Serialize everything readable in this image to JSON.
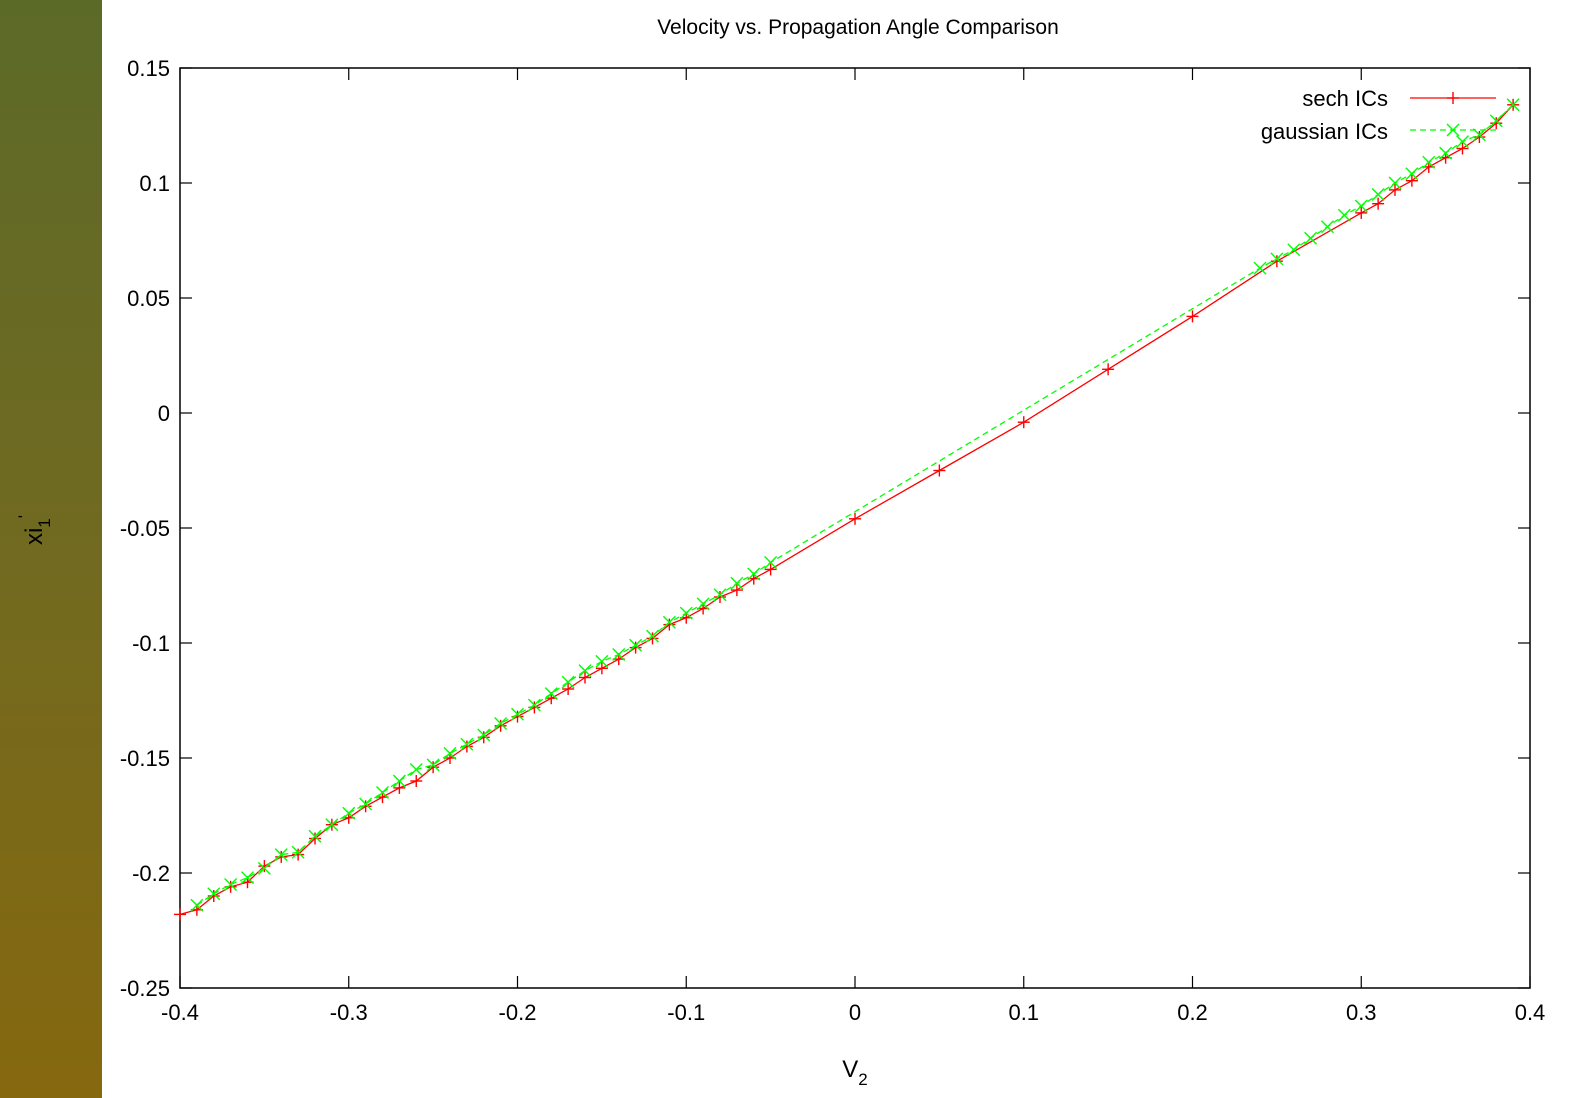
{
  "colors": {
    "sidebar_top": "#5c6a28",
    "sidebar_bottom": "#86680f",
    "plot_background": "#ffffff",
    "axis": "#000000"
  },
  "chart_data": {
    "type": "line",
    "title": "Velocity vs. Propagation Angle Comparison",
    "xlabel": "V",
    "xlabel_sub": "2",
    "ylabel": "xi",
    "ylabel_sub": "1",
    "ylabel_prime": "'",
    "xlim": [
      -0.4,
      0.4
    ],
    "ylim": [
      -0.25,
      0.15
    ],
    "x_ticks": [
      -0.4,
      -0.3,
      -0.2,
      -0.1,
      0,
      0.1,
      0.2,
      0.3,
      0.4
    ],
    "x_tick_labels": [
      "-0.4",
      "-0.3",
      "-0.2",
      "-0.1",
      "0",
      "0.1",
      "0.2",
      "0.3",
      "0.4"
    ],
    "y_ticks": [
      -0.25,
      -0.2,
      -0.15,
      -0.1,
      -0.05,
      0,
      0.05,
      0.1,
      0.15
    ],
    "y_tick_labels": [
      "-0.25",
      "-0.2",
      "-0.15",
      "-0.1",
      "-0.05",
      "0",
      "0.05",
      "0.1",
      "0.15"
    ],
    "grid": false,
    "legend_position": "top-right",
    "series": [
      {
        "name": "sech ICs",
        "color": "#ff0000",
        "line_style": "solid",
        "marker": "plus",
        "x": [
          -0.4,
          -0.39,
          -0.38,
          -0.37,
          -0.36,
          -0.35,
          -0.34,
          -0.33,
          -0.32,
          -0.31,
          -0.3,
          -0.29,
          -0.28,
          -0.27,
          -0.26,
          -0.25,
          -0.24,
          -0.23,
          -0.22,
          -0.21,
          -0.2,
          -0.19,
          -0.18,
          -0.17,
          -0.16,
          -0.15,
          -0.14,
          -0.13,
          -0.12,
          -0.11,
          -0.1,
          -0.09,
          -0.08,
          -0.07,
          -0.06,
          -0.05,
          0,
          0.05,
          0.1,
          0.15,
          0.2,
          0.25,
          0.3,
          0.31,
          0.32,
          0.33,
          0.34,
          0.35,
          0.36,
          0.37,
          0.38,
          0.39
        ],
        "y": [
          -0.218,
          -0.216,
          -0.21,
          -0.206,
          -0.204,
          -0.197,
          -0.193,
          -0.192,
          -0.185,
          -0.179,
          -0.176,
          -0.171,
          -0.167,
          -0.163,
          -0.16,
          -0.154,
          -0.15,
          -0.145,
          -0.141,
          -0.136,
          -0.132,
          -0.128,
          -0.124,
          -0.12,
          -0.115,
          -0.111,
          -0.107,
          -0.102,
          -0.098,
          -0.092,
          -0.089,
          -0.085,
          -0.08,
          -0.077,
          -0.072,
          -0.068,
          -0.046,
          -0.025,
          -0.004,
          0.019,
          0.042,
          0.066,
          0.087,
          0.091,
          0.097,
          0.101,
          0.107,
          0.111,
          0.115,
          0.12,
          0.126,
          0.134
        ]
      },
      {
        "name": "gaussian ICs",
        "color": "#00ff00",
        "line_style": "dashed",
        "marker": "cross",
        "x": [
          -0.39,
          -0.38,
          -0.37,
          -0.36,
          -0.35,
          -0.34,
          -0.33,
          -0.32,
          -0.31,
          -0.3,
          -0.29,
          -0.28,
          -0.27,
          -0.26,
          -0.25,
          -0.24,
          -0.23,
          -0.22,
          -0.21,
          -0.2,
          -0.19,
          -0.18,
          -0.17,
          -0.16,
          -0.15,
          -0.14,
          -0.13,
          -0.12,
          -0.11,
          -0.1,
          -0.09,
          -0.08,
          -0.07,
          -0.06,
          -0.05,
          0.24,
          0.25,
          0.26,
          0.27,
          0.28,
          0.29,
          0.3,
          0.31,
          0.32,
          0.33,
          0.34,
          0.35,
          0.36,
          0.37,
          0.38,
          0.39
        ],
        "y": [
          -0.214,
          -0.209,
          -0.205,
          -0.202,
          -0.198,
          -0.192,
          -0.191,
          -0.184,
          -0.179,
          -0.174,
          -0.17,
          -0.165,
          -0.16,
          -0.155,
          -0.153,
          -0.148,
          -0.144,
          -0.14,
          -0.135,
          -0.131,
          -0.127,
          -0.122,
          -0.117,
          -0.112,
          -0.108,
          -0.105,
          -0.101,
          -0.097,
          -0.091,
          -0.087,
          -0.083,
          -0.079,
          -0.074,
          -0.07,
          -0.065,
          0.063,
          0.067,
          0.071,
          0.076,
          0.081,
          0.086,
          0.09,
          0.095,
          0.1,
          0.104,
          0.109,
          0.113,
          0.118,
          0.121,
          0.127,
          0.134
        ]
      }
    ]
  }
}
